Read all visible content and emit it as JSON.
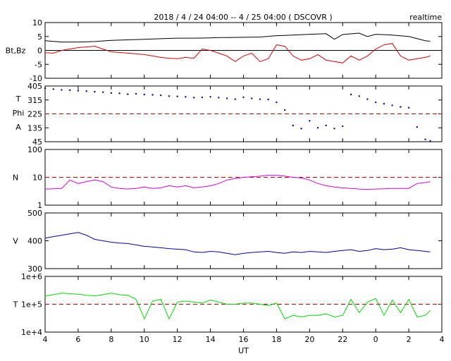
{
  "header": {
    "title": "2018 / 4 / 24   04:00 --  4 / 25   04:00 ( DSCOVR )",
    "status": "realtime"
  },
  "x_axis": {
    "label": "UT",
    "ticks": [
      "4",
      "6",
      "8",
      "10",
      "12",
      "14",
      "16",
      "18",
      "20",
      "22",
      "0",
      "2",
      "4"
    ],
    "range_hours": [
      0,
      24
    ]
  },
  "colors": {
    "bt": "#000000",
    "bz": "#e00000",
    "phi": "#0000b0",
    "n": "#e000e0",
    "v": "#0000b0",
    "t": "#00dd00",
    "ref": "#b00000"
  },
  "chart_data": [
    {
      "type": "line",
      "panel": "magnetic field",
      "ylabel": "Bt,Bz",
      "ylim": [
        -10,
        10
      ],
      "yticks": [
        "10",
        "5",
        "0",
        "-5",
        "-10"
      ],
      "reference_line": 0,
      "series": [
        {
          "name": "Bt",
          "x": [
            0,
            1,
            2,
            3,
            4,
            5,
            6,
            7,
            7.5,
            8,
            9,
            10,
            10.5,
            11,
            12,
            13,
            14,
            15,
            16,
            17,
            17.5,
            18,
            19,
            19.5,
            20,
            21,
            22,
            23,
            23.3
          ],
          "y": [
            3.5,
            3,
            3,
            3.2,
            3.6,
            3.8,
            4,
            4.2,
            4.3,
            4.4,
            4.4,
            4.5,
            4.6,
            4.6,
            4.7,
            4.8,
            5.3,
            5.5,
            5.8,
            6,
            4,
            5.7,
            6.2,
            5,
            5.8,
            5.5,
            5,
            3.5,
            3.3
          ]
        },
        {
          "name": "Bz",
          "x": [
            0,
            0.5,
            1,
            2,
            3,
            4,
            5,
            6,
            6.5,
            7,
            7.5,
            8,
            8.5,
            9,
            9.5,
            10,
            10.5,
            11,
            11.5,
            12,
            12.5,
            13,
            13.5,
            14,
            14.5,
            15,
            15.5,
            16,
            16.5,
            17,
            17.5,
            18,
            18.5,
            19,
            19.5,
            20,
            20.5,
            21,
            21.5,
            22,
            22.5,
            23,
            23.3
          ],
          "y": [
            -0.8,
            -1,
            0,
            1,
            1.5,
            -0.5,
            -1,
            -1.5,
            -2,
            -2.5,
            -2.8,
            -3,
            -2.5,
            -2.8,
            0.5,
            0,
            -1,
            -2,
            -4,
            -2,
            -1,
            -4,
            -3,
            2,
            1.5,
            -2,
            -3.5,
            -3,
            -1.5,
            -3.5,
            -4,
            -4.5,
            -2,
            -3.5,
            -2,
            0.5,
            2,
            2.5,
            -2,
            -3.5,
            -3,
            -2.5,
            -2
          ]
        }
      ]
    },
    {
      "type": "scatter",
      "panel": "phi angle",
      "ylabel_lines": [
        "T",
        "Phi",
        "A"
      ],
      "ylim": [
        45,
        405
      ],
      "yticks": [
        "405",
        "315",
        "225",
        "135",
        "45"
      ],
      "reference_line": 225,
      "series": [
        {
          "name": "Phi",
          "x": [
            0,
            0.5,
            1,
            1.5,
            2,
            2.5,
            3,
            3.5,
            4,
            4.5,
            5,
            5.5,
            6,
            6.5,
            7,
            7.5,
            8,
            8.5,
            9,
            9.5,
            10,
            10.5,
            11,
            11.5,
            12,
            12.5,
            13,
            13.5,
            14,
            14.5,
            15,
            15.5,
            16,
            16.5,
            17,
            17.5,
            18,
            18.5,
            19,
            19.5,
            20,
            20.5,
            21,
            21.5,
            22,
            22.5,
            23,
            23.3
          ],
          "y": [
            390,
            385,
            380,
            378,
            375,
            372,
            368,
            365,
            360,
            358,
            352,
            355,
            350,
            348,
            345,
            340,
            338,
            335,
            330,
            332,
            335,
            330,
            325,
            320,
            332,
            325,
            320,
            318,
            300,
            250,
            150,
            130,
            180,
            135,
            150,
            130,
            145,
            350,
            340,
            320,
            300,
            290,
            280,
            270,
            265,
            140,
            60,
            50
          ]
        }
      ]
    },
    {
      "type": "line",
      "panel": "density",
      "ylabel": "N",
      "ylog": true,
      "ylim": [
        1,
        100
      ],
      "yticks": [
        "100",
        "10",
        "1"
      ],
      "reference_line": 10,
      "series": [
        {
          "name": "N",
          "x": [
            0,
            0.5,
            1,
            1.5,
            2,
            2.5,
            3,
            3.5,
            4,
            4.5,
            5,
            5.5,
            6,
            6.5,
            7,
            7.5,
            8,
            8.5,
            9,
            9.5,
            10,
            10.5,
            11,
            11.5,
            12,
            12.5,
            13,
            13.5,
            14,
            14.5,
            15,
            15.5,
            16,
            16.5,
            17,
            17.5,
            18,
            18.5,
            19,
            19.5,
            20,
            20.5,
            21,
            21.5,
            22,
            22.5,
            23,
            23.3
          ],
          "y": [
            3.8,
            3.9,
            4,
            8,
            6,
            7,
            8,
            7,
            4.5,
            4,
            3.8,
            4,
            4.5,
            4,
            4.2,
            5,
            4.5,
            5,
            4.2,
            4.5,
            5,
            6,
            8,
            9,
            10,
            10.5,
            11,
            12,
            12,
            11,
            10,
            9.5,
            8,
            6,
            5,
            4.5,
            4.2,
            4,
            3.8,
            3.7,
            3.8,
            3.9,
            4,
            4,
            4,
            6,
            6.5,
            7
          ]
        }
      ]
    },
    {
      "type": "line",
      "panel": "speed",
      "ylabel": "V",
      "ylim": [
        300,
        500
      ],
      "yticks": [
        "500",
        "400",
        "300"
      ],
      "series": [
        {
          "name": "V",
          "x": [
            0,
            0.5,
            1,
            1.5,
            2,
            2.5,
            3,
            3.5,
            4,
            4.5,
            5,
            5.5,
            6,
            6.5,
            7,
            7.5,
            8,
            8.5,
            9,
            9.5,
            10,
            10.5,
            11,
            11.5,
            12,
            12.5,
            13,
            13.5,
            14,
            14.5,
            15,
            15.5,
            16,
            16.5,
            17,
            17.5,
            18,
            18.5,
            19,
            19.5,
            20,
            20.5,
            21,
            21.5,
            22,
            22.5,
            23,
            23.3
          ],
          "y": [
            410,
            415,
            420,
            425,
            430,
            420,
            405,
            400,
            395,
            392,
            390,
            385,
            380,
            378,
            375,
            372,
            370,
            368,
            360,
            358,
            362,
            360,
            355,
            350,
            355,
            358,
            360,
            362,
            358,
            355,
            360,
            358,
            362,
            360,
            358,
            362,
            365,
            368,
            362,
            365,
            372,
            368,
            370,
            375,
            368,
            365,
            362,
            360
          ]
        }
      ]
    },
    {
      "type": "line",
      "panel": "temperature",
      "ylabel": "T",
      "ylog": true,
      "ylim": [
        10000,
        1000000
      ],
      "yticks": [
        "1e+6",
        "1e+5",
        "1e+4"
      ],
      "reference_line": 100000,
      "series": [
        {
          "name": "T",
          "x": [
            0,
            0.5,
            1,
            1.5,
            2,
            2.5,
            3,
            3.5,
            4,
            4.5,
            5,
            5.5,
            6,
            6.5,
            7,
            7.5,
            8,
            8.5,
            9,
            9.5,
            10,
            10.5,
            11,
            11.5,
            12,
            12.5,
            13,
            13.5,
            14,
            14.5,
            15,
            15.5,
            16,
            16.5,
            17,
            17.5,
            18,
            18.5,
            19,
            19.5,
            20,
            20.5,
            21,
            21.5,
            22,
            22.5,
            23,
            23.3
          ],
          "y": [
            200000,
            220000,
            250000,
            240000,
            230000,
            210000,
            200000,
            220000,
            250000,
            220000,
            210000,
            150000,
            30000,
            130000,
            150000,
            30000,
            120000,
            130000,
            120000,
            110000,
            140000,
            120000,
            100000,
            100000,
            110000,
            110000,
            100000,
            90000,
            110000,
            30000,
            40000,
            35000,
            40000,
            40000,
            45000,
            35000,
            40000,
            150000,
            50000,
            120000,
            160000,
            40000,
            140000,
            50000,
            150000,
            35000,
            40000,
            60000
          ]
        }
      ]
    }
  ]
}
